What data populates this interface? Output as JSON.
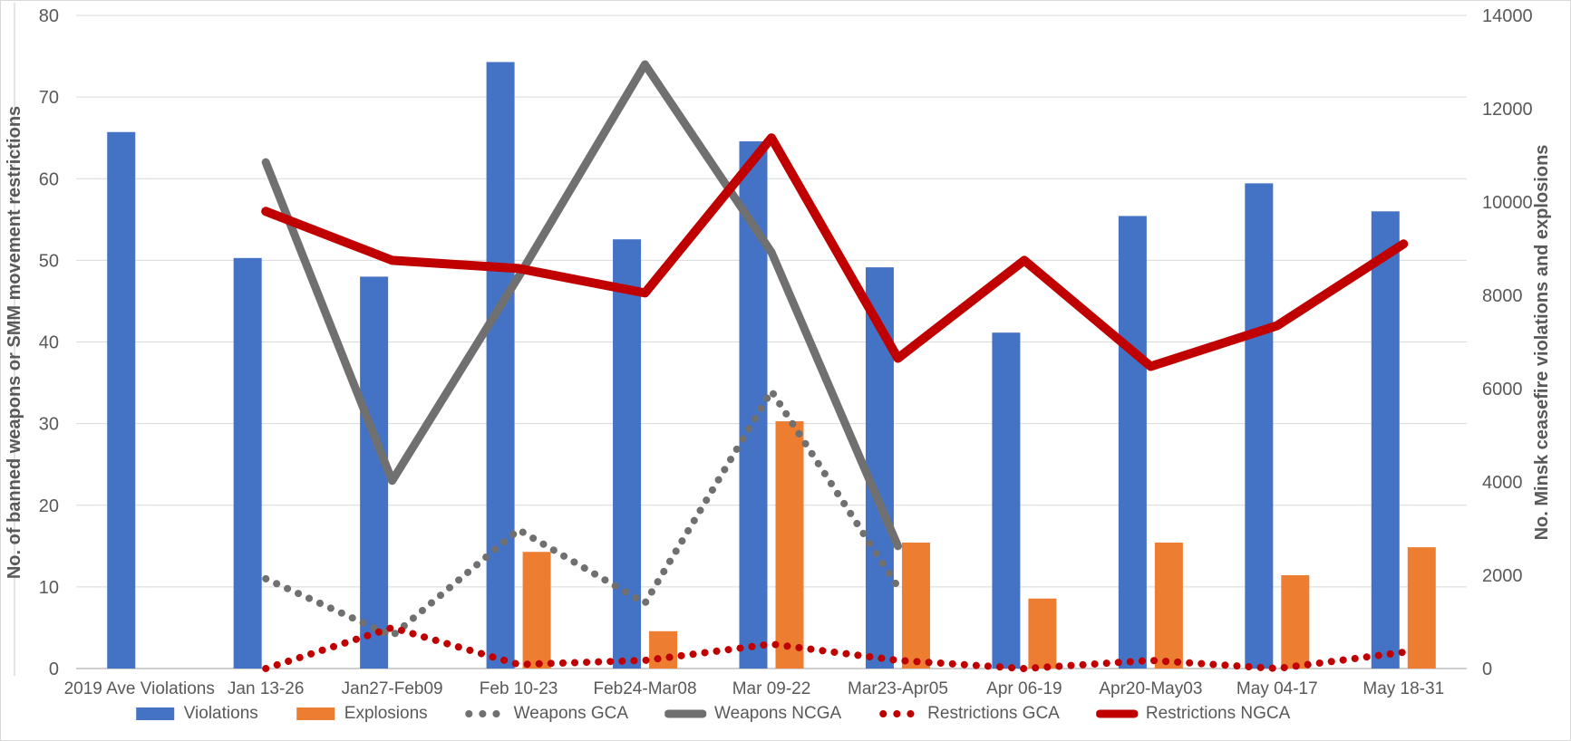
{
  "chart_data": {
    "type": "combo-bar-line",
    "categories": [
      "2019 Ave Violations",
      "Jan 13-26",
      "Jan27-Feb09",
      "Feb 10-23",
      "Feb24-Mar08",
      "Mar 09-22",
      "Mar23-Apr05",
      "Apr 06-19",
      "Apr20-May03",
      "May 04-17",
      "May 18-31"
    ],
    "series": [
      {
        "name": "Violations",
        "type": "bar",
        "dash": "solid",
        "axis": "right",
        "color": "#4472C4",
        "values": [
          11500,
          8800,
          8400,
          13000,
          9200,
          11300,
          8600,
          7200,
          9700,
          10400,
          9800
        ]
      },
      {
        "name": "Explosions",
        "type": "bar",
        "dash": "solid",
        "axis": "right",
        "color": "#ED7D31",
        "values": [
          null,
          null,
          null,
          2500,
          800,
          5300,
          2700,
          1500,
          2700,
          2000,
          2600
        ]
      },
      {
        "name": "Weapons GCA",
        "type": "line",
        "dash": "dot",
        "axis": "left",
        "color": "#707070",
        "values": [
          null,
          11,
          4,
          17,
          8,
          34,
          10,
          null,
          null,
          null,
          null
        ]
      },
      {
        "name": "Weapons NCGA",
        "type": "line",
        "dash": "solid",
        "axis": "left",
        "color": "#707070",
        "values": [
          null,
          62,
          23,
          48,
          74,
          51,
          15,
          null,
          null,
          null,
          null
        ]
      },
      {
        "name": "Restrictions GCA",
        "type": "line",
        "dash": "dot",
        "axis": "left",
        "color": "#C00000",
        "values": [
          null,
          0,
          5,
          0.5,
          1,
          3,
          1,
          0,
          1,
          0,
          2
        ]
      },
      {
        "name": "Restrictions NGCA",
        "type": "line",
        "dash": "solid",
        "axis": "left",
        "color": "#C00000",
        "values": [
          null,
          56,
          50,
          49,
          46,
          65,
          38,
          50,
          37,
          42,
          52
        ]
      }
    ],
    "ylabel_left": "No. of banned weapons or SMM movement restrictions",
    "ylabel_right": "No. Minsk ceasefire violations and explosions",
    "y_left_axis": {
      "min": 0,
      "max": 80,
      "step": 10
    },
    "y_right_axis": {
      "min": 0,
      "max": 14000,
      "step": 2000
    },
    "grid": true,
    "legend_position": "bottom"
  },
  "colors": {
    "text": "#595959",
    "gridline": "#D9D9D9",
    "axis_line": "#BFBFBF"
  }
}
